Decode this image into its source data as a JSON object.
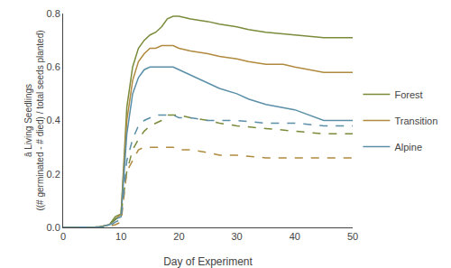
{
  "chart_data": {
    "type": "line",
    "xlabel": "Day of Experiment",
    "ylabel": "â Living Seedlings\n((# germinated - # died) / total seeds planted)",
    "xlim": [
      0,
      50
    ],
    "ylim": [
      0.0,
      0.8
    ],
    "xticks": [
      0,
      10,
      20,
      30,
      40,
      50
    ],
    "yticks": [
      {
        "value": 0.0,
        "label": "0.0"
      },
      0.2,
      0.4,
      0.6,
      0.8
    ],
    "grid": false,
    "legend": "right",
    "series": [
      {
        "name": "Forest",
        "color": "#7a8c3b",
        "line_style": "solid",
        "x": [
          0,
          6,
          7,
          8,
          9,
          10,
          11,
          12,
          13,
          14,
          15,
          16,
          17,
          18,
          19,
          20,
          22,
          25,
          27,
          30,
          32,
          35,
          40,
          45,
          50
        ],
        "values": [
          0.0,
          0.0,
          0.005,
          0.01,
          0.04,
          0.05,
          0.45,
          0.6,
          0.67,
          0.7,
          0.72,
          0.73,
          0.75,
          0.78,
          0.79,
          0.79,
          0.78,
          0.77,
          0.76,
          0.75,
          0.74,
          0.73,
          0.72,
          0.71,
          0.71
        ]
      },
      {
        "name": "Transition",
        "color": "#b08a3e",
        "line_style": "solid",
        "x": [
          0,
          6,
          7,
          8,
          9,
          10,
          11,
          12,
          13,
          14,
          15,
          16,
          17,
          18,
          19,
          20,
          22,
          25,
          27,
          30,
          32,
          35,
          38,
          40,
          45,
          50
        ],
        "values": [
          0.0,
          0.0,
          0.005,
          0.01,
          0.03,
          0.05,
          0.4,
          0.55,
          0.62,
          0.65,
          0.67,
          0.67,
          0.68,
          0.68,
          0.68,
          0.67,
          0.66,
          0.65,
          0.64,
          0.63,
          0.62,
          0.61,
          0.61,
          0.6,
          0.58,
          0.58
        ]
      },
      {
        "name": "Alpine",
        "color": "#5b8fa8",
        "line_style": "solid",
        "x": [
          0,
          6,
          7,
          8,
          9,
          10,
          11,
          12,
          13,
          14,
          15,
          16,
          17,
          18,
          19,
          20,
          22,
          25,
          27,
          30,
          32,
          35,
          40,
          45,
          50
        ],
        "values": [
          0.0,
          0.0,
          0.005,
          0.01,
          0.03,
          0.04,
          0.35,
          0.5,
          0.56,
          0.59,
          0.6,
          0.6,
          0.6,
          0.6,
          0.6,
          0.59,
          0.57,
          0.54,
          0.52,
          0.5,
          0.48,
          0.46,
          0.44,
          0.4,
          0.4
        ]
      },
      {
        "name": "Forest",
        "color": "#7a8c3b",
        "line_style": "dashed",
        "x": [
          0,
          6,
          7,
          8,
          9,
          10,
          11,
          12,
          13,
          14,
          15,
          16,
          17,
          18,
          19,
          20,
          22,
          25,
          27,
          30,
          35,
          40,
          45,
          50
        ],
        "values": [
          0.0,
          0.0,
          0.005,
          0.01,
          0.03,
          0.05,
          0.21,
          0.29,
          0.33,
          0.36,
          0.38,
          0.39,
          0.4,
          0.42,
          0.42,
          0.42,
          0.41,
          0.4,
          0.39,
          0.38,
          0.37,
          0.36,
          0.35,
          0.35
        ]
      },
      {
        "name": "Transition",
        "color": "#b08a3e",
        "line_style": "dashed",
        "x": [
          0,
          6,
          7,
          8,
          9,
          10,
          11,
          12,
          13,
          14,
          15,
          16,
          17,
          18,
          19,
          20,
          22,
          25,
          27,
          30,
          35,
          40,
          45,
          50
        ],
        "values": [
          0.0,
          0.0,
          0.002,
          0.005,
          0.01,
          0.02,
          0.21,
          0.25,
          0.29,
          0.3,
          0.3,
          0.3,
          0.3,
          0.3,
          0.3,
          0.29,
          0.29,
          0.28,
          0.27,
          0.27,
          0.26,
          0.26,
          0.26,
          0.26
        ]
      },
      {
        "name": "Alpine",
        "color": "#5b8fa8",
        "line_style": "dashed",
        "x": [
          0,
          6,
          7,
          8,
          9,
          10,
          11,
          12,
          13,
          14,
          15,
          16,
          17,
          18,
          19,
          20,
          22,
          25,
          27,
          30,
          35,
          40,
          45,
          50
        ],
        "values": [
          0.0,
          0.0,
          0.002,
          0.005,
          0.02,
          0.03,
          0.25,
          0.33,
          0.38,
          0.4,
          0.41,
          0.42,
          0.42,
          0.42,
          0.42,
          0.41,
          0.41,
          0.4,
          0.4,
          0.4,
          0.39,
          0.39,
          0.38,
          0.38
        ]
      }
    ]
  }
}
